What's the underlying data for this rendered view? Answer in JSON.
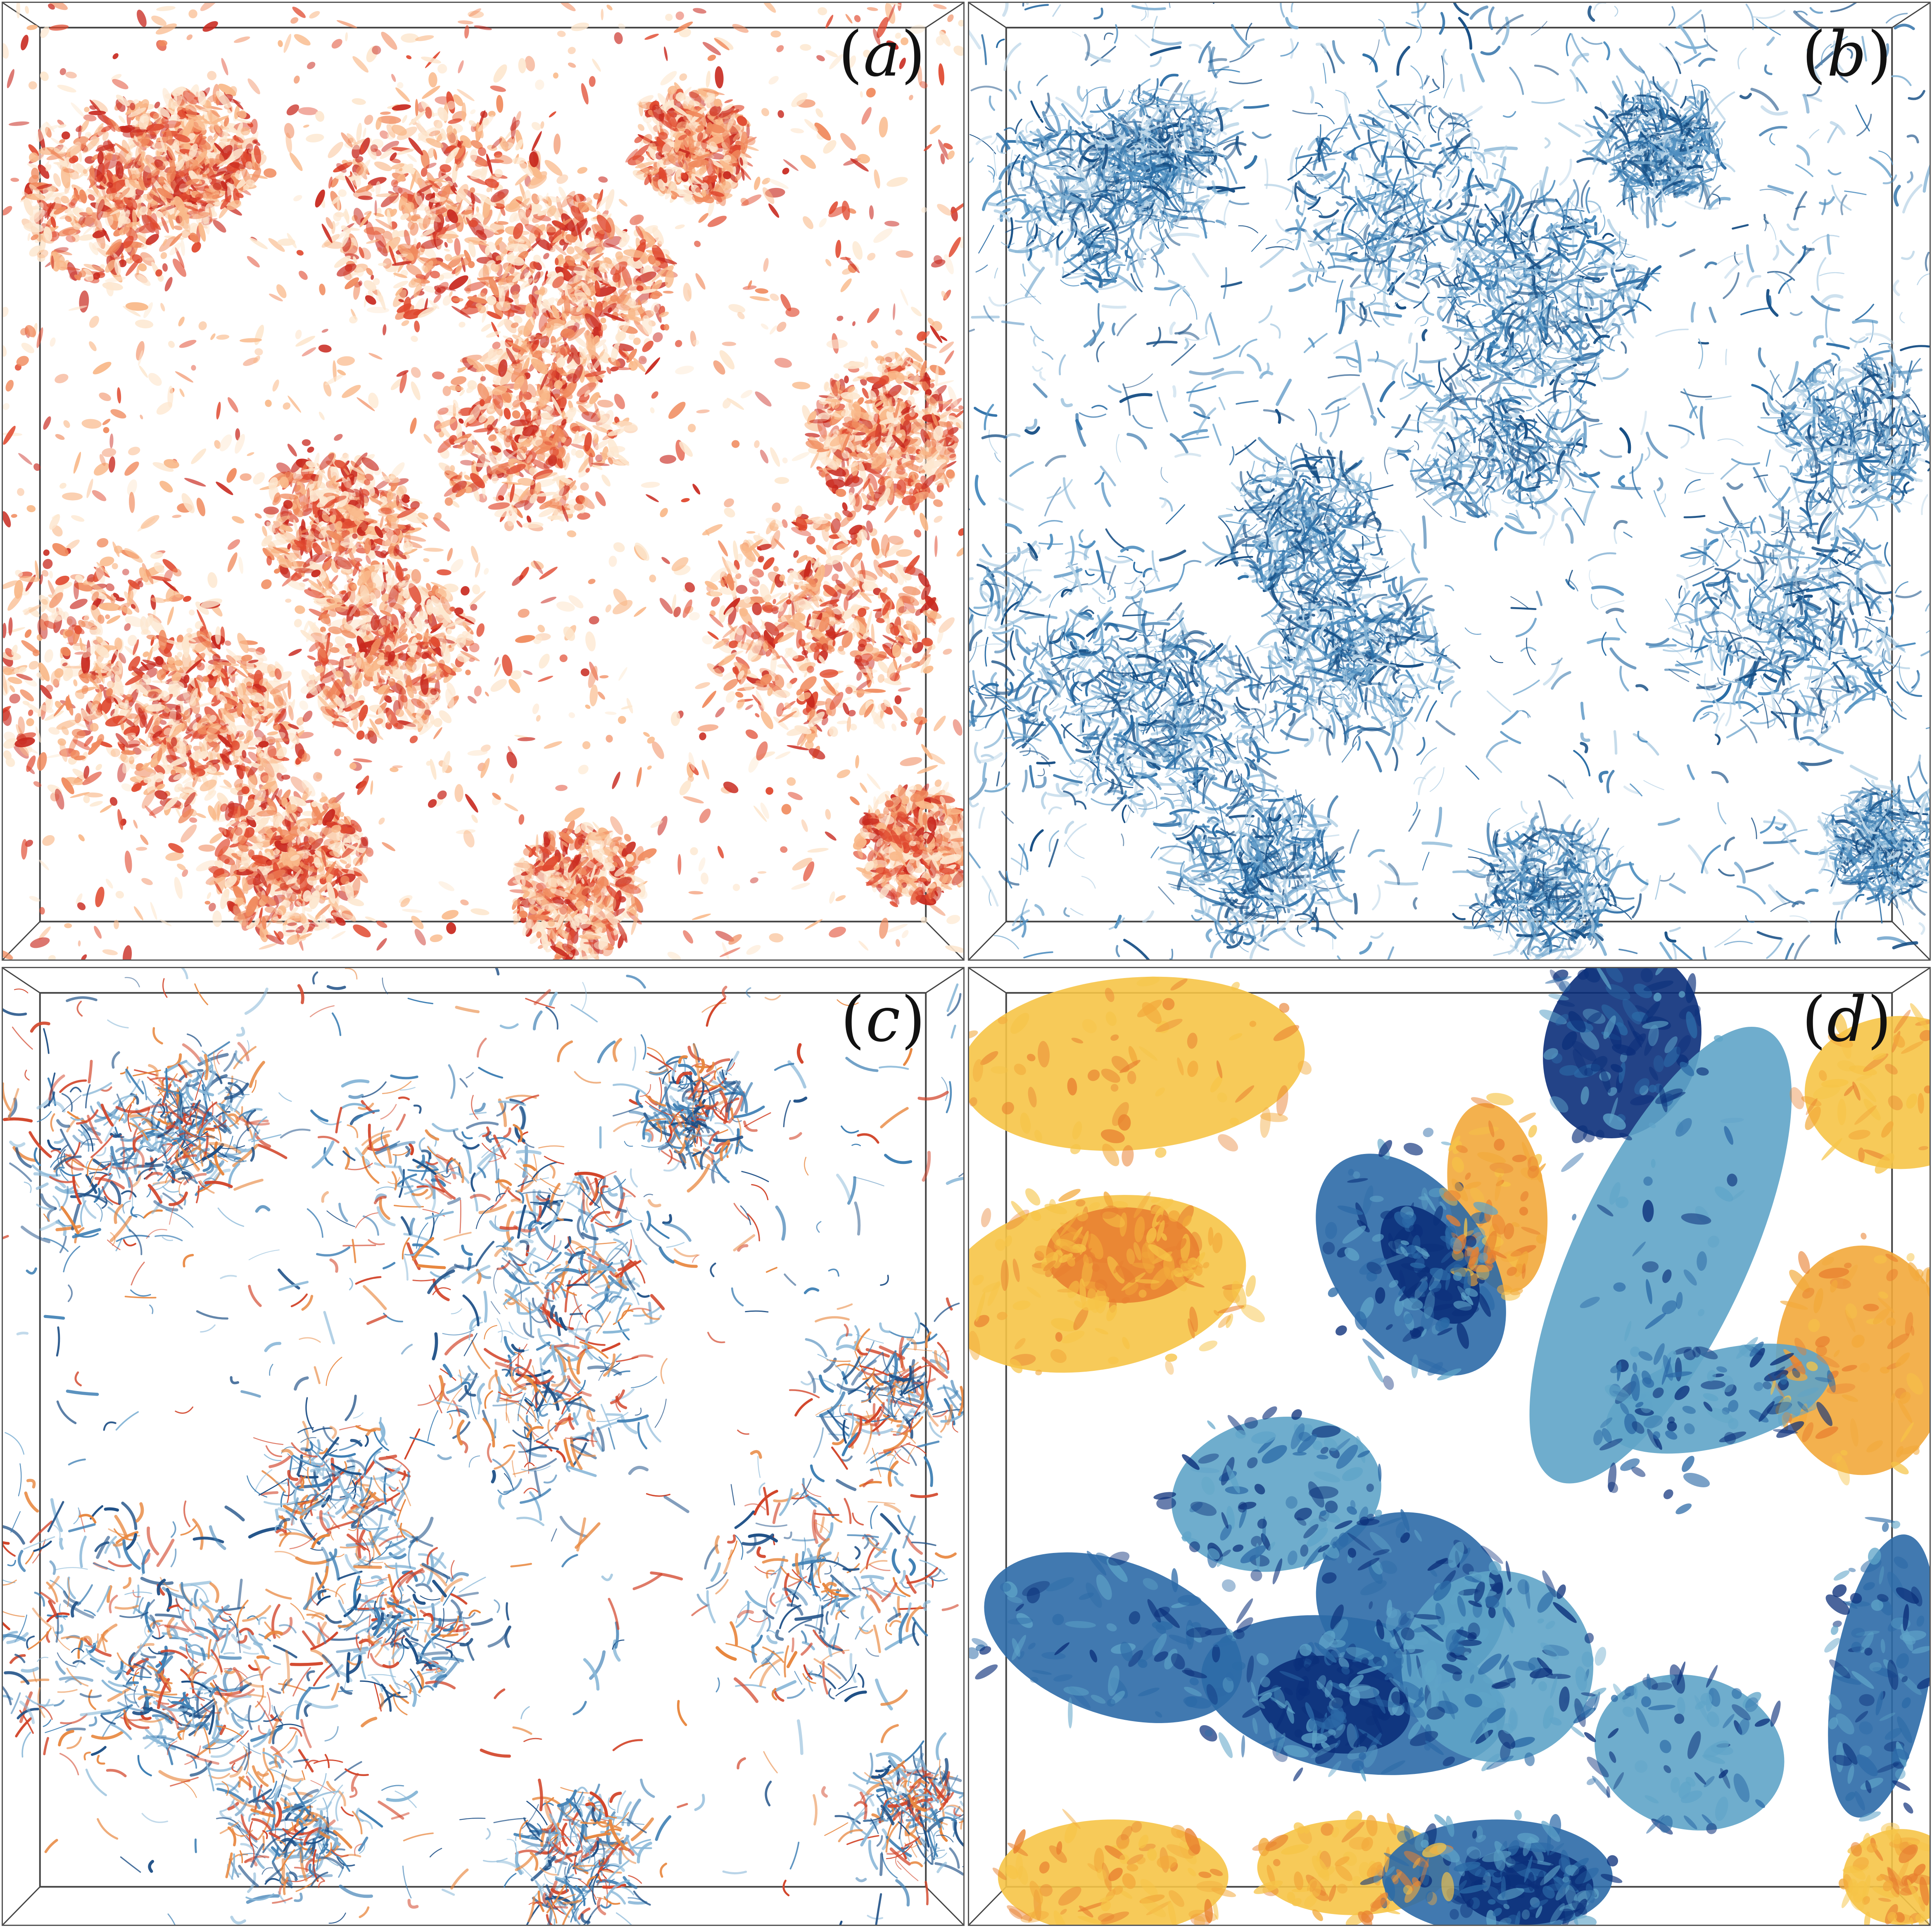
{
  "panels": [
    {
      "id": "a",
      "label_open": "(",
      "label_letter": "a",
      "label_close": ")",
      "palette": [
        "#fde7cf",
        "#f9b98a",
        "#f08a5d",
        "#e0492f",
        "#c8281e"
      ]
    },
    {
      "id": "b",
      "label_open": "(",
      "label_letter": "b",
      "label_close": ")",
      "palette": [
        "#bcd6e8",
        "#7fb0d3",
        "#4f8fc0",
        "#2b6ea6",
        "#174f85"
      ]
    },
    {
      "id": "c",
      "label_open": "(",
      "label_letter": "c",
      "label_close": ")",
      "palette": [
        "#8ab8d8",
        "#3e7fb4",
        "#1d4f86",
        "#e8873f",
        "#d2452a"
      ]
    },
    {
      "id": "d",
      "label_open": "(",
      "label_letter": "d",
      "label_close": ")",
      "palette": [
        "#f6c447",
        "#f2a93b",
        "#e88030",
        "#5fa4c8",
        "#2c6aa7",
        "#0b2f7a"
      ]
    }
  ]
}
